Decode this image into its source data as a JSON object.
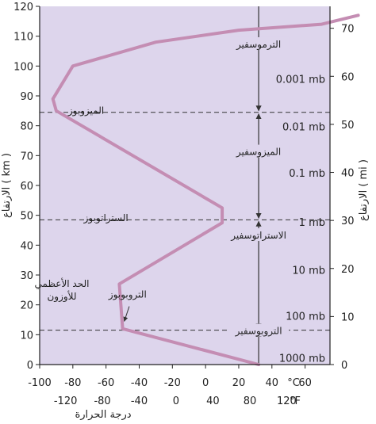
{
  "chart_data": {
    "type": "line",
    "title": "",
    "xlabel": "درجة الحرارة",
    "ylabel_left": "الارتفاع ( km )",
    "ylabel_right": "الارتفاع ( mi )",
    "x_unit_celsius": "°C",
    "x_unit_fahrenheit": "°F",
    "x_range_celsius": [
      -100,
      75
    ],
    "y_range_km": [
      0,
      120
    ],
    "grid": false,
    "legend": "none",
    "colors": {
      "background": "#ddd5ec",
      "line": "#c48db3",
      "boundary": "#333333"
    },
    "x_ticks_celsius": [
      "-100",
      "-80",
      "-60",
      "-40",
      "-20",
      "0",
      "20",
      "40",
      "60"
    ],
    "x_ticks_fahrenheit": [
      {
        "label": "-120",
        "c": -84.4
      },
      {
        "label": "-80",
        "c": -62.2
      },
      {
        "label": "-40",
        "c": -40
      },
      {
        "label": "0",
        "c": -17.8
      },
      {
        "label": "40",
        "c": 4.4
      },
      {
        "label": "80",
        "c": 26.7
      },
      {
        "label": "120",
        "c": 48.9
      }
    ],
    "y_ticks_km": [
      "0",
      "10",
      "20",
      "30",
      "40",
      "50",
      "60",
      "70",
      "80",
      "90",
      "100",
      "110",
      "120"
    ],
    "y_ticks_mi": [
      "0",
      "10",
      "20",
      "30",
      "40",
      "50",
      "60",
      "70"
    ],
    "pressure_labels": [
      {
        "label": "1000 mb",
        "km": 2
      },
      {
        "label": "100 mb",
        "km": 16
      },
      {
        "label": "10 mb",
        "km": 31.5
      },
      {
        "label": "1 mb",
        "km": 47.5
      },
      {
        "label": "0.1 mb",
        "km": 64
      },
      {
        "label": "0.01 mb",
        "km": 79.5
      },
      {
        "label": "0.001 mb",
        "km": 95.5
      }
    ],
    "series": [
      {
        "x": [
          32,
          -50,
          -52,
          10,
          10,
          -90,
          -92,
          -80,
          -30,
          20,
          70,
          92
        ],
        "y": [
          0,
          12,
          27,
          47.5,
          52.5,
          85,
          89,
          100,
          108,
          112,
          114,
          117
        ]
      }
    ],
    "boundaries_km": [
      11.5,
      48.5,
      84.5
    ],
    "layers": [
      {
        "label": "التروبوسفير",
        "km": 11,
        "arrows": [
          0,
          11.5
        ]
      },
      {
        "label": "الاستراتوسفير",
        "km": 43,
        "arrows": [
          11.5,
          48.5
        ]
      },
      {
        "label": "الميزوسفير",
        "km": 71,
        "arrows": [
          48.5,
          84.5
        ]
      },
      {
        "label": "الترموسفير",
        "km": 107,
        "arrows": [
          84.5,
          120
        ]
      }
    ],
    "pauses": [
      {
        "label": "التروبوبوز",
        "km": 22.5,
        "c": -47
      },
      {
        "label": "الستراتوبوز",
        "km": 48,
        "c": -60
      },
      {
        "label": "الميزوبوز",
        "km": 84,
        "c": -72
      }
    ],
    "ozone_label": [
      "الحد الأعظمي",
      "للأوزون"
    ]
  }
}
